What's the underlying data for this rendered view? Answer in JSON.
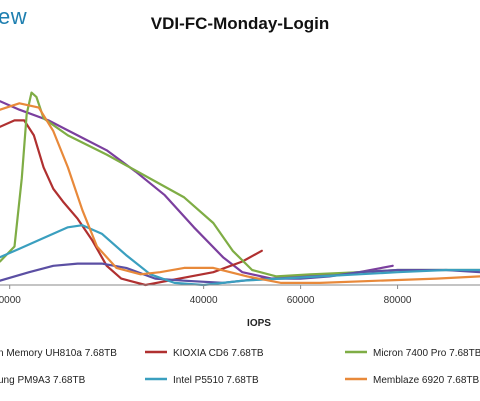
{
  "brand": {
    "text": "ew",
    "color": "#1e7fb0"
  },
  "chart_data": {
    "type": "line",
    "title": "VDI-FC-Monday-Login",
    "xlabel": "IOPS",
    "ylabel": "",
    "xlim": [
      -2000,
      97000
    ],
    "ylim": [
      0,
      1
    ],
    "x_ticks": [
      {
        "value": 0,
        "label": "0000"
      },
      {
        "value": 40000,
        "label": "40000"
      },
      {
        "value": 60000,
        "label": "60000"
      },
      {
        "value": 80000,
        "label": "80000"
      }
    ],
    "grid": "horizontal-none",
    "legend_position": "bottom",
    "series": [
      {
        "name": "n Memory UH810a 7.68TB",
        "color": "#7b3f9e",
        "points": [
          [
            -2000,
            0.86
          ],
          [
            2000,
            0.82
          ],
          [
            8000,
            0.77
          ],
          [
            14000,
            0.7
          ],
          [
            20000,
            0.63
          ],
          [
            26000,
            0.53
          ],
          [
            32000,
            0.42
          ],
          [
            38000,
            0.27
          ],
          [
            44000,
            0.13
          ],
          [
            48000,
            0.06
          ],
          [
            54000,
            0.03
          ],
          [
            60000,
            0.04
          ],
          [
            66000,
            0.05
          ],
          [
            72000,
            0.06
          ],
          [
            79000,
            0.09
          ]
        ]
      },
      {
        "name": "KIOXIA CD6 7.68TB",
        "color": "#b03030",
        "points": [
          [
            -2000,
            0.74
          ],
          [
            1000,
            0.77
          ],
          [
            3000,
            0.77
          ],
          [
            5000,
            0.7
          ],
          [
            7000,
            0.55
          ],
          [
            9000,
            0.45
          ],
          [
            11000,
            0.39
          ],
          [
            14000,
            0.31
          ],
          [
            17000,
            0.21
          ],
          [
            20000,
            0.09
          ],
          [
            23000,
            0.03
          ],
          [
            28000,
            0.0
          ],
          [
            35000,
            0.03
          ],
          [
            42000,
            0.06
          ],
          [
            48000,
            0.11
          ],
          [
            52000,
            0.16
          ]
        ]
      },
      {
        "name": "Micron 7400 Pro 7.68TB",
        "color": "#7fad45",
        "points": [
          [
            -2000,
            0.11
          ],
          [
            1000,
            0.18
          ],
          [
            2500,
            0.5
          ],
          [
            3500,
            0.8
          ],
          [
            4500,
            0.9
          ],
          [
            5500,
            0.88
          ],
          [
            7000,
            0.78
          ],
          [
            12000,
            0.7
          ],
          [
            20000,
            0.61
          ],
          [
            28000,
            0.51
          ],
          [
            36000,
            0.41
          ],
          [
            42000,
            0.29
          ],
          [
            46000,
            0.16
          ],
          [
            50000,
            0.07
          ],
          [
            55000,
            0.04
          ],
          [
            62000,
            0.05
          ],
          [
            72000,
            0.06
          ],
          [
            80000,
            0.07
          ],
          [
            88000,
            0.07
          ],
          [
            97000,
            0.07
          ]
        ]
      },
      {
        "name": "ung PM9A3 7.68TB",
        "color": "#5b4fa3",
        "points": [
          [
            -2000,
            0.02
          ],
          [
            4000,
            0.06
          ],
          [
            9000,
            0.09
          ],
          [
            14000,
            0.1
          ],
          [
            19000,
            0.1
          ],
          [
            24000,
            0.08
          ],
          [
            30000,
            0.03
          ],
          [
            36000,
            0.02
          ],
          [
            44000,
            0.01
          ],
          [
            52000,
            0.03
          ],
          [
            60000,
            0.03
          ],
          [
            66000,
            0.04
          ],
          [
            72000,
            0.06
          ],
          [
            80000,
            0.07
          ],
          [
            90000,
            0.07
          ],
          [
            97000,
            0.06
          ]
        ]
      },
      {
        "name": "Intel P5510 7.68TB",
        "color": "#3a9fbf",
        "points": [
          [
            -2000,
            0.13
          ],
          [
            2000,
            0.17
          ],
          [
            7000,
            0.22
          ],
          [
            12000,
            0.27
          ],
          [
            15000,
            0.28
          ],
          [
            19000,
            0.24
          ],
          [
            24000,
            0.14
          ],
          [
            29000,
            0.05
          ],
          [
            34000,
            0.01
          ],
          [
            40000,
            0.0
          ],
          [
            48000,
            0.02
          ],
          [
            56000,
            0.03
          ],
          [
            64000,
            0.04
          ],
          [
            72000,
            0.05
          ],
          [
            80000,
            0.06
          ],
          [
            90000,
            0.07
          ],
          [
            97000,
            0.07
          ]
        ]
      },
      {
        "name": "Memblaze 6920 7.68TB",
        "color": "#e8893a",
        "points": [
          [
            -2000,
            0.82
          ],
          [
            2000,
            0.85
          ],
          [
            6000,
            0.83
          ],
          [
            9000,
            0.72
          ],
          [
            12000,
            0.55
          ],
          [
            15000,
            0.35
          ],
          [
            18000,
            0.18
          ],
          [
            22000,
            0.08
          ],
          [
            27000,
            0.05
          ],
          [
            31000,
            0.06
          ],
          [
            36000,
            0.08
          ],
          [
            42000,
            0.08
          ],
          [
            49000,
            0.04
          ],
          [
            56000,
            0.01
          ],
          [
            64000,
            0.01
          ],
          [
            76000,
            0.02
          ],
          [
            88000,
            0.03
          ],
          [
            97000,
            0.04
          ]
        ]
      }
    ]
  }
}
